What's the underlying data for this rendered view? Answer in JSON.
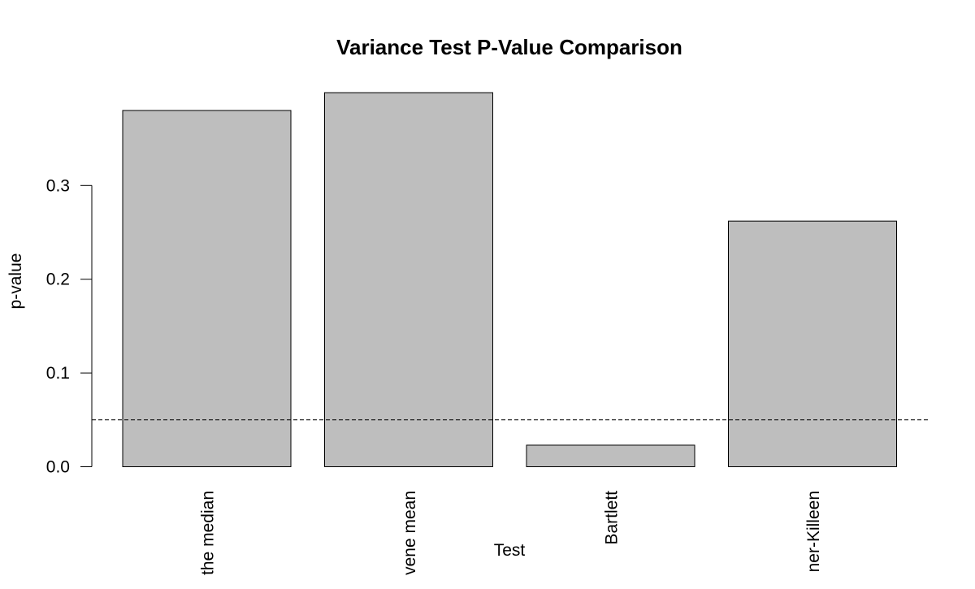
{
  "chart_data": {
    "type": "bar",
    "title": "Variance Test P-Value Comparison",
    "xlabel": "Test",
    "ylabel": "p-value",
    "categories": [
      "Levene median",
      "Levene mean",
      "Bartlett",
      "Fligner-Killeen"
    ],
    "values": [
      0.38,
      0.399,
      0.023,
      0.262
    ],
    "ylim": [
      0,
      0.4
    ],
    "yticks": [
      0.0,
      0.1,
      0.2,
      0.3
    ],
    "ytick_labels": [
      "0.0",
      "0.1",
      "0.2",
      "0.3"
    ],
    "visible_category_labels": [
      "the median",
      "vene mean",
      "Bartlett",
      "ner-Killeen"
    ],
    "reference_line": {
      "value": 0.05,
      "style": "dashed"
    },
    "bar_color": "#BEBEBE",
    "bar_border_color": "#000000",
    "grid": false,
    "legend": "none"
  }
}
